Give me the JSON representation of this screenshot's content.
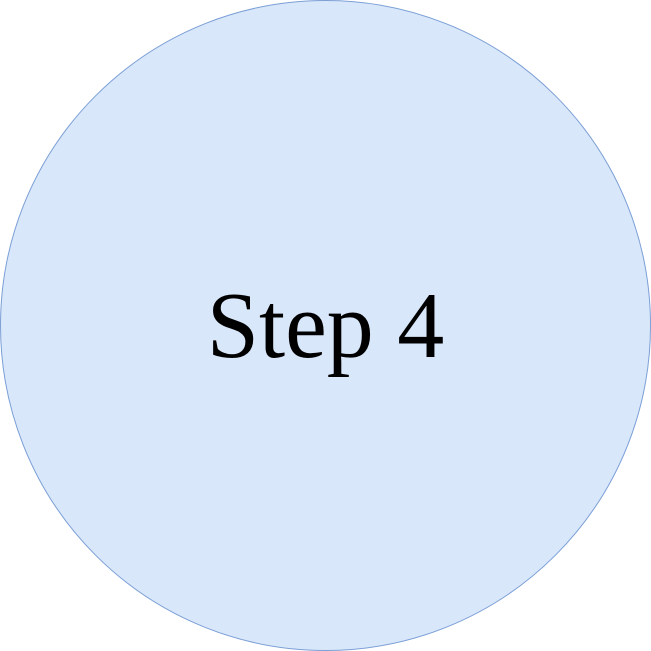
{
  "diagram": {
    "label": "Step 4",
    "fill_color": "#d9e7fa",
    "stroke_color": "#7b9fd6",
    "text_color": "#000000"
  }
}
